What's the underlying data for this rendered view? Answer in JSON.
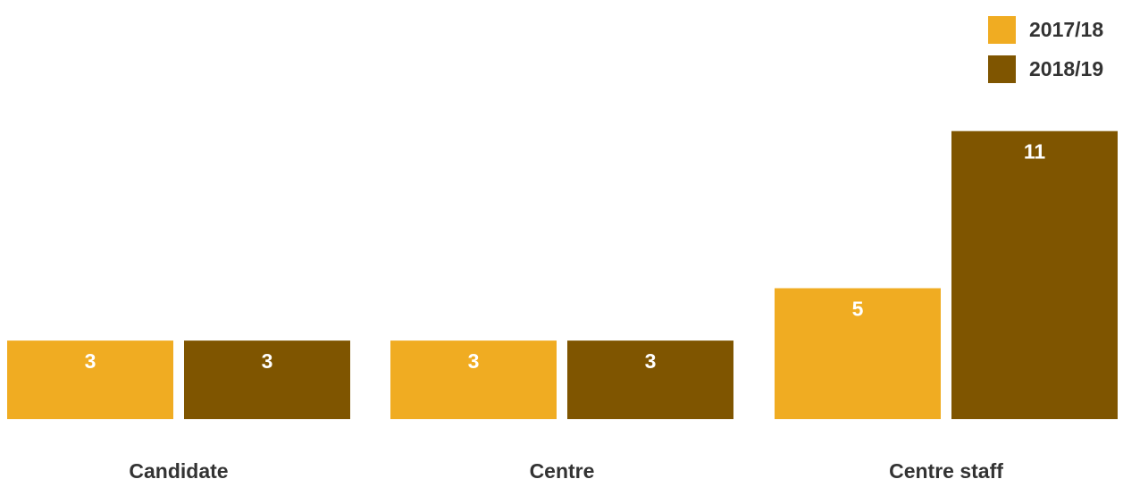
{
  "chart_data": {
    "type": "bar",
    "categories": [
      "Candidate",
      "Centre",
      "Centre staff"
    ],
    "series": [
      {
        "name": "2017/18",
        "values": [
          3,
          3,
          5
        ],
        "color": "#F0AC22"
      },
      {
        "name": "2018/19",
        "values": [
          3,
          3,
          11
        ],
        "color": "#7F5500"
      }
    ],
    "ylim": [
      0,
      11
    ],
    "grid": false,
    "legend": "top-right",
    "data_labels": true
  }
}
